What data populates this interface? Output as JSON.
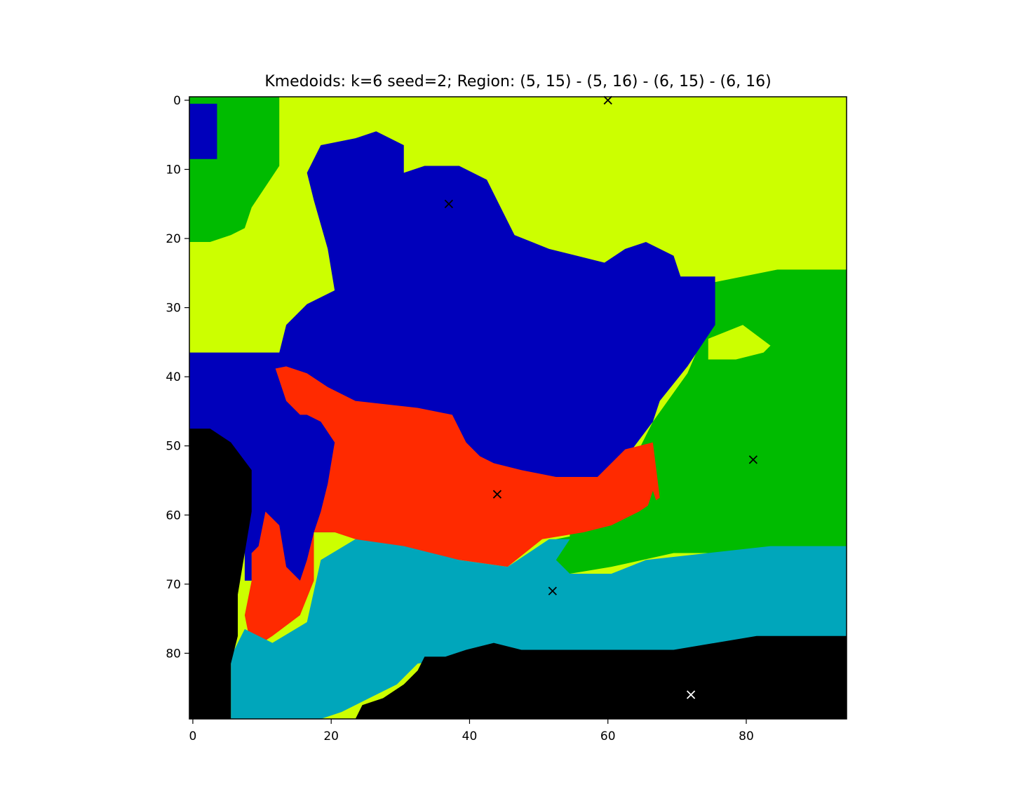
{
  "chart_data": {
    "type": "heatmap",
    "title": "Kmedoids: k=6 seed=2; Region: (5, 15) - (5, 16) - (6, 15) - (6, 16)",
    "xlabel": "",
    "ylabel": "",
    "xlim": [
      -0.5,
      94.5
    ],
    "ylim": [
      89.5,
      -0.5
    ],
    "grid_size": [
      95,
      90
    ],
    "x_ticks": [
      0,
      20,
      40,
      60,
      80
    ],
    "y_ticks": [
      0,
      10,
      20,
      30,
      40,
      50,
      60,
      70,
      80
    ],
    "grid": false,
    "clusters": [
      {
        "id": "yellow",
        "color": "#ccff00"
      },
      {
        "id": "blue",
        "color": "#0000bb"
      },
      {
        "id": "green",
        "color": "#00bb00"
      },
      {
        "id": "red",
        "color": "#ff2a00"
      },
      {
        "id": "cyan",
        "color": "#00a6bb"
      },
      {
        "id": "black",
        "color": "#000000"
      }
    ],
    "region_polygons": [
      {
        "cluster": "yellow",
        "points": [
          [
            0,
            0
          ],
          [
            95,
            0
          ],
          [
            95,
            90
          ],
          [
            0,
            90
          ]
        ]
      },
      {
        "cluster": "green",
        "points": [
          [
            0,
            0
          ],
          [
            13,
            0
          ],
          [
            13,
            10
          ],
          [
            9,
            16
          ],
          [
            8,
            19
          ],
          [
            6,
            20
          ],
          [
            3,
            21
          ],
          [
            0,
            21
          ]
        ]
      },
      {
        "cluster": "blue",
        "points": [
          [
            0,
            1
          ],
          [
            4,
            1
          ],
          [
            4,
            9
          ],
          [
            0,
            9
          ]
        ]
      },
      {
        "cluster": "green",
        "points": [
          [
            75,
            27
          ],
          [
            80,
            26
          ],
          [
            85,
            25
          ],
          [
            95,
            25
          ],
          [
            95,
            66
          ],
          [
            55,
            66
          ],
          [
            55,
            60
          ],
          [
            63,
            55
          ],
          [
            67,
            47
          ],
          [
            72,
            40
          ],
          [
            75,
            33
          ]
        ]
      },
      {
        "cluster": "yellow",
        "points": [
          [
            75,
            35
          ],
          [
            80,
            33
          ],
          [
            84,
            36
          ],
          [
            83,
            37
          ],
          [
            79,
            38
          ],
          [
            75,
            38
          ]
        ]
      },
      {
        "cluster": "blue",
        "points": [
          [
            0,
            37
          ],
          [
            13,
            37
          ],
          [
            14,
            33
          ],
          [
            17,
            30
          ],
          [
            21,
            28
          ],
          [
            20,
            22
          ],
          [
            18,
            15
          ],
          [
            17,
            11
          ],
          [
            19,
            7
          ],
          [
            24,
            6
          ],
          [
            27,
            5
          ],
          [
            31,
            7
          ],
          [
            31,
            11
          ],
          [
            34,
            10
          ],
          [
            39,
            10
          ],
          [
            43,
            12
          ],
          [
            45,
            16
          ],
          [
            47,
            20
          ],
          [
            52,
            22
          ],
          [
            56,
            23
          ],
          [
            60,
            24
          ],
          [
            63,
            22
          ],
          [
            66,
            21
          ],
          [
            70,
            23
          ],
          [
            71,
            26
          ],
          [
            76,
            26
          ],
          [
            76,
            33
          ],
          [
            72,
            39
          ],
          [
            68,
            44
          ],
          [
            67,
            47
          ],
          [
            64,
            51
          ],
          [
            62,
            52
          ],
          [
            62,
            56
          ],
          [
            57,
            56
          ],
          [
            55,
            59
          ],
          [
            50,
            60
          ],
          [
            48,
            63
          ],
          [
            0,
            63
          ]
        ]
      },
      {
        "cluster": "red",
        "points": [
          [
            9,
            40
          ],
          [
            14,
            39
          ],
          [
            17,
            40
          ],
          [
            20,
            42
          ],
          [
            24,
            44
          ],
          [
            33,
            45
          ],
          [
            38,
            46
          ],
          [
            40,
            50
          ],
          [
            42,
            52
          ],
          [
            44,
            53
          ],
          [
            48,
            54
          ],
          [
            53,
            55
          ],
          [
            59,
            55
          ],
          [
            63,
            51
          ],
          [
            67,
            50
          ],
          [
            68,
            58
          ],
          [
            65,
            60
          ],
          [
            61,
            62
          ],
          [
            57,
            63
          ],
          [
            51,
            64
          ],
          [
            46,
            68
          ],
          [
            39,
            67
          ],
          [
            31,
            66
          ],
          [
            24,
            64
          ],
          [
            21,
            63
          ],
          [
            18,
            63
          ],
          [
            18,
            70
          ],
          [
            16,
            75
          ],
          [
            12,
            78
          ],
          [
            9,
            80
          ],
          [
            8,
            75
          ],
          [
            9,
            70
          ],
          [
            9,
            64
          ],
          [
            10,
            60
          ],
          [
            13,
            58
          ],
          [
            15,
            58
          ],
          [
            16,
            60
          ],
          [
            18,
            59
          ],
          [
            20,
            55
          ],
          [
            21,
            50
          ],
          [
            19,
            47
          ],
          [
            17,
            46
          ],
          [
            14,
            46
          ]
        ]
      },
      {
        "cluster": "blue",
        "points": [
          [
            0,
            38
          ],
          [
            12,
            38
          ],
          [
            14,
            44
          ],
          [
            18,
            48
          ],
          [
            21,
            50
          ],
          [
            20,
            56
          ],
          [
            19,
            60
          ],
          [
            18,
            63
          ],
          [
            17,
            67
          ],
          [
            16,
            70
          ],
          [
            14,
            68
          ],
          [
            13,
            62
          ],
          [
            11,
            60
          ],
          [
            10,
            65
          ],
          [
            9,
            66
          ],
          [
            9,
            70
          ],
          [
            8,
            70
          ],
          [
            8,
            54
          ],
          [
            6,
            50
          ],
          [
            3,
            47
          ],
          [
            0,
            46
          ]
        ]
      },
      {
        "cluster": "green",
        "points": [
          [
            53,
            64
          ],
          [
            58,
            63
          ],
          [
            63,
            62
          ],
          [
            66,
            60
          ],
          [
            67,
            57
          ],
          [
            70,
            66
          ],
          [
            61,
            68
          ],
          [
            55,
            69
          ],
          [
            52,
            67
          ]
        ]
      },
      {
        "cluster": "cyan",
        "points": [
          [
            6,
            90
          ],
          [
            6,
            81
          ],
          [
            8,
            77
          ],
          [
            12,
            79
          ],
          [
            17,
            76
          ],
          [
            19,
            67
          ],
          [
            24,
            64
          ],
          [
            31,
            65
          ],
          [
            39,
            67
          ],
          [
            46,
            68
          ],
          [
            52,
            64
          ],
          [
            55,
            64
          ],
          [
            53,
            67
          ],
          [
            55,
            69
          ],
          [
            61,
            69
          ],
          [
            66,
            67
          ],
          [
            75,
            66
          ],
          [
            84,
            65
          ],
          [
            90,
            65
          ],
          [
            95,
            65
          ],
          [
            95,
            79
          ],
          [
            83,
            79
          ],
          [
            76,
            80
          ],
          [
            68,
            80
          ],
          [
            60,
            80
          ],
          [
            51,
            81
          ],
          [
            44,
            80
          ],
          [
            40,
            81
          ],
          [
            33,
            82
          ],
          [
            30,
            85
          ],
          [
            26,
            87
          ],
          [
            22,
            89
          ],
          [
            19,
            90
          ]
        ]
      },
      {
        "cluster": "black",
        "points": [
          [
            0,
            48
          ],
          [
            3,
            48
          ],
          [
            6,
            50
          ],
          [
            9,
            54
          ],
          [
            9,
            60
          ],
          [
            8,
            66
          ],
          [
            7,
            72
          ],
          [
            7,
            78
          ],
          [
            6,
            82
          ],
          [
            6,
            90
          ],
          [
            0,
            90
          ]
        ]
      },
      {
        "cluster": "black",
        "points": [
          [
            24,
            90
          ],
          [
            25,
            88
          ],
          [
            28,
            87
          ],
          [
            31,
            85
          ],
          [
            33,
            83
          ],
          [
            34,
            81
          ],
          [
            37,
            81
          ],
          [
            40,
            80
          ],
          [
            44,
            79
          ],
          [
            48,
            80
          ],
          [
            51,
            80
          ],
          [
            55,
            80
          ],
          [
            60,
            80
          ],
          [
            65,
            80
          ],
          [
            70,
            80
          ],
          [
            76,
            79
          ],
          [
            82,
            78
          ],
          [
            95,
            78
          ],
          [
            95,
            90
          ]
        ]
      }
    ],
    "medoids": [
      {
        "x": 60,
        "y": 0,
        "marker_color": "#000000"
      },
      {
        "x": 37,
        "y": 15,
        "marker_color": "#000000"
      },
      {
        "x": 81,
        "y": 52,
        "marker_color": "#000000"
      },
      {
        "x": 44,
        "y": 57,
        "marker_color": "#000000"
      },
      {
        "x": 52,
        "y": 71,
        "marker_color": "#000000"
      },
      {
        "x": 72,
        "y": 86,
        "marker_color": "#ffffff"
      }
    ]
  }
}
